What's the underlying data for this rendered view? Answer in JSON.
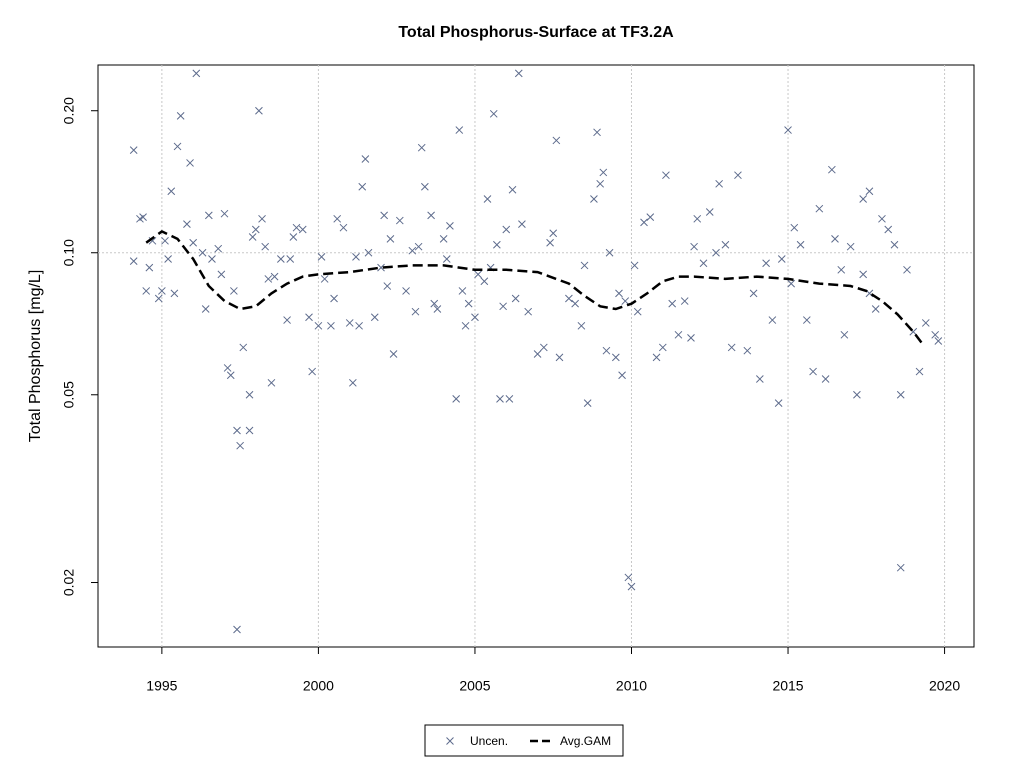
{
  "chart_data": {
    "type": "scatter",
    "title": "Total Phosphorus-Surface at TF3.2A",
    "y_label": "Total Phosphorus [mg/L]",
    "xlim": [
      1992.96,
      2020.94
    ],
    "xticks": [
      1995,
      2000,
      2005,
      2010,
      2015,
      2020
    ],
    "ylim": [
      0.0146,
      0.25
    ],
    "log_y": true,
    "yticks": [
      0.02,
      0.05,
      {
        "value": 0.1,
        "label": "0.10"
      },
      {
        "value": 0.2,
        "label": "0.20"
      }
    ],
    "ygrid": [
      0.1
    ],
    "grid": true,
    "legend": "bottom",
    "series": [
      {
        "name": "Uncen.",
        "type": "scatter",
        "color": "#5d6b8c",
        "x": [
          1994.1,
          1994.1,
          1994.3,
          1994.4,
          1994.5,
          1994.6,
          1994.7,
          1994.9,
          1995.0,
          1995.1,
          1995.2,
          1995.3,
          1995.4,
          1995.5,
          1995.6,
          1995.8,
          1995.9,
          1996.0,
          1996.1,
          1996.3,
          1996.4,
          1996.5,
          1996.6,
          1996.8,
          1996.9,
          1997.0,
          1997.1,
          1997.2,
          1997.3,
          1997.4,
          1997.4,
          1997.5,
          1997.6,
          1997.8,
          1997.8,
          1997.9,
          1998.0,
          1998.1,
          1998.2,
          1998.3,
          1998.4,
          1998.5,
          1998.6,
          1998.8,
          1999.0,
          1999.1,
          1999.2,
          1999.3,
          1999.5,
          1999.7,
          1999.8,
          2000.0,
          2000.1,
          2000.2,
          2000.4,
          2000.5,
          2000.6,
          2000.8,
          2001.0,
          2001.1,
          2001.2,
          2001.3,
          2001.4,
          2001.5,
          2001.6,
          2001.8,
          2002.0,
          2002.1,
          2002.2,
          2002.3,
          2002.4,
          2002.6,
          2002.8,
          2003.0,
          2003.1,
          2003.2,
          2003.3,
          2003.4,
          2003.6,
          2003.7,
          2003.8,
          2004.0,
          2004.1,
          2004.2,
          2004.4,
          2004.5,
          2004.6,
          2004.7,
          2004.8,
          2005.0,
          2005.1,
          2005.3,
          2005.4,
          2005.5,
          2005.6,
          2005.7,
          2005.8,
          2005.9,
          2006.0,
          2006.1,
          2006.2,
          2006.3,
          2006.4,
          2006.5,
          2006.7,
          2007.0,
          2007.2,
          2007.4,
          2007.5,
          2007.6,
          2007.7,
          2008.0,
          2008.2,
          2008.4,
          2008.5,
          2008.6,
          2008.8,
          2008.9,
          2009.0,
          2009.1,
          2009.2,
          2009.3,
          2009.5,
          2009.6,
          2009.7,
          2009.8,
          2009.9,
          2010.0,
          2010.1,
          2010.2,
          2010.4,
          2010.6,
          2010.8,
          2011.0,
          2011.1,
          2011.3,
          2011.5,
          2011.7,
          2011.9,
          2012.0,
          2012.1,
          2012.3,
          2012.5,
          2012.7,
          2012.8,
          2013.0,
          2013.2,
          2013.4,
          2013.7,
          2013.9,
          2014.1,
          2014.3,
          2014.5,
          2014.7,
          2014.8,
          2015.0,
          2015.1,
          2015.2,
          2015.4,
          2015.6,
          2015.8,
          2016.0,
          2016.2,
          2016.4,
          2016.5,
          2016.7,
          2016.8,
          2017.0,
          2017.2,
          2017.4,
          2017.6,
          2017.8,
          2018.0,
          2018.2,
          2018.4,
          2018.6,
          2018.8,
          2019.0,
          2019.2,
          2019.4,
          2017.4,
          2017.6,
          2019.7,
          2018.6,
          2019.8
        ],
        "values": [
          0.165,
          0.096,
          0.118,
          0.119,
          0.083,
          0.093,
          0.106,
          0.08,
          0.083,
          0.106,
          0.097,
          0.135,
          0.082,
          0.168,
          0.195,
          0.115,
          0.155,
          0.105,
          0.24,
          0.1,
          0.076,
          0.12,
          0.097,
          0.102,
          0.09,
          0.121,
          0.057,
          0.055,
          0.083,
          0.042,
          0.0159,
          0.039,
          0.063,
          0.042,
          0.05,
          0.108,
          0.112,
          0.2,
          0.118,
          0.103,
          0.088,
          0.053,
          0.089,
          0.097,
          0.072,
          0.097,
          0.108,
          0.113,
          0.112,
          0.073,
          0.056,
          0.07,
          0.098,
          0.088,
          0.07,
          0.08,
          0.118,
          0.113,
          0.071,
          0.053,
          0.098,
          0.07,
          0.138,
          0.158,
          0.1,
          0.073,
          0.093,
          0.12,
          0.085,
          0.107,
          0.061,
          0.117,
          0.083,
          0.101,
          0.075,
          0.103,
          0.167,
          0.138,
          0.12,
          0.078,
          0.076,
          0.107,
          0.097,
          0.114,
          0.049,
          0.182,
          0.083,
          0.07,
          0.078,
          0.073,
          0.09,
          0.087,
          0.13,
          0.093,
          0.197,
          0.104,
          0.049,
          0.077,
          0.112,
          0.049,
          0.136,
          0.08,
          0.24,
          0.115,
          0.075,
          0.061,
          0.063,
          0.105,
          0.11,
          0.173,
          0.06,
          0.08,
          0.078,
          0.07,
          0.094,
          0.048,
          0.13,
          0.18,
          0.14,
          0.148,
          0.062,
          0.1,
          0.06,
          0.082,
          0.055,
          0.079,
          0.0205,
          0.0196,
          0.094,
          0.075,
          0.116,
          0.119,
          0.06,
          0.063,
          0.146,
          0.078,
          0.067,
          0.079,
          0.066,
          0.103,
          0.118,
          0.095,
          0.122,
          0.1,
          0.14,
          0.104,
          0.063,
          0.146,
          0.062,
          0.082,
          0.054,
          0.095,
          0.072,
          0.048,
          0.097,
          0.182,
          0.086,
          0.113,
          0.104,
          0.072,
          0.056,
          0.124,
          0.054,
          0.15,
          0.107,
          0.092,
          0.067,
          0.103,
          0.05,
          0.09,
          0.082,
          0.076,
          0.118,
          0.112,
          0.104,
          0.05,
          0.092,
          0.068,
          0.056,
          0.071,
          0.13,
          0.135,
          0.067,
          0.0215,
          0.065
        ]
      },
      {
        "name": "Avg.GAM",
        "type": "line",
        "color": "#000000",
        "dashed": true,
        "x": [
          1994.5,
          1995.0,
          1995.5,
          1996.0,
          1996.5,
          1997.0,
          1997.5,
          1998.0,
          1998.5,
          1999.0,
          1999.5,
          2000,
          2001,
          2002,
          2003,
          2004,
          2005,
          2006,
          2007,
          2008,
          2008.5,
          2009,
          2009.5,
          2010,
          2010.5,
          2011,
          2011.5,
          2012,
          2013,
          2014,
          2015,
          2016,
          2017,
          2017.5,
          2018,
          2018.5,
          2019,
          2019.3
        ],
        "values": [
          0.105,
          0.111,
          0.107,
          0.097,
          0.085,
          0.079,
          0.076,
          0.077,
          0.082,
          0.086,
          0.089,
          0.09,
          0.091,
          0.093,
          0.094,
          0.094,
          0.092,
          0.092,
          0.091,
          0.086,
          0.081,
          0.077,
          0.076,
          0.078,
          0.082,
          0.087,
          0.089,
          0.089,
          0.088,
          0.089,
          0.088,
          0.086,
          0.085,
          0.083,
          0.079,
          0.074,
          0.068,
          0.064
        ]
      }
    ]
  }
}
